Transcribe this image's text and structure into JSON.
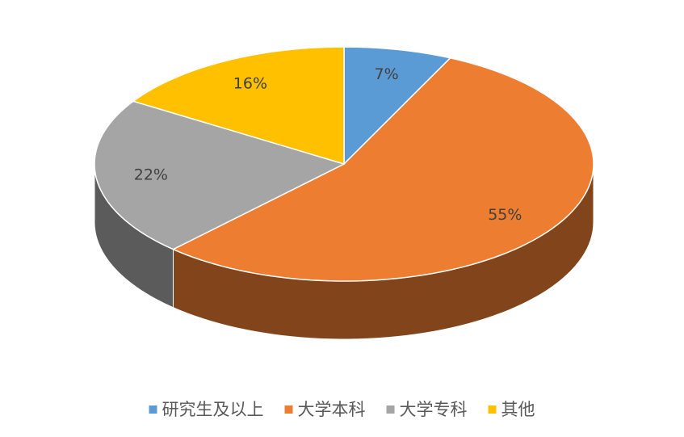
{
  "chart_data": {
    "type": "pie",
    "categories": [
      "研究生及以上",
      "大学本科",
      "大学专科",
      "其他"
    ],
    "values": [
      7,
      55,
      22,
      16
    ],
    "value_labels": [
      "7%",
      "55%",
      "22%",
      "16%"
    ],
    "colors": [
      "#5b9bd5",
      "#ed7d31",
      "#a5a5a5",
      "#ffc000"
    ],
    "legend": "bottom"
  }
}
